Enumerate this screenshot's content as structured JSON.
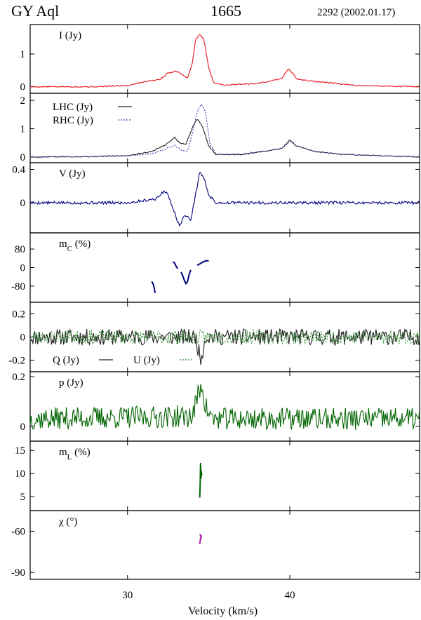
{
  "header": {
    "star": "GY Aql",
    "line": "1665",
    "epoch": "2292 (2002.01.17)"
  },
  "chart_data": {
    "type": "line",
    "title": "GY Aql",
    "xlabel": "Velocity (km/s)",
    "xlim": [
      24,
      48
    ],
    "x_ticks": [
      {
        "value": 30,
        "label": "30"
      },
      {
        "value": 40,
        "label": "40"
      }
    ],
    "panels": [
      {
        "id": "I",
        "label": "I (Jy)",
        "ylim": [
          -0.2,
          1.9
        ],
        "y_ticks": [
          {
            "value": 0,
            "label": "0"
          },
          {
            "value": 1,
            "label": "1"
          }
        ],
        "series": [
          {
            "name": "I",
            "color": "#e8141c",
            "dash": "",
            "points": [
              [
                24,
                0
              ],
              [
                28,
                0
              ],
              [
                30,
                0.04
              ],
              [
                31.3,
                0.18
              ],
              [
                32,
                0.22
              ],
              [
                32.5,
                0.42
              ],
              [
                33,
                0.48
              ],
              [
                33.3,
                0.4
              ],
              [
                33.7,
                0.25
              ],
              [
                34.0,
                0.75
              ],
              [
                34.2,
                1.45
              ],
              [
                34.45,
                1.6
              ],
              [
                34.7,
                1.45
              ],
              [
                35.0,
                0.6
              ],
              [
                35.3,
                0.12
              ],
              [
                36,
                0.05
              ],
              [
                38,
                0.1
              ],
              [
                39.5,
                0.25
              ],
              [
                39.9,
                0.55
              ],
              [
                40.1,
                0.45
              ],
              [
                40.5,
                0.22
              ],
              [
                42,
                0.14
              ],
              [
                44,
                0.04
              ],
              [
                48,
                0
              ]
            ]
          }
        ]
      },
      {
        "id": "LR",
        "label": "",
        "ylim": [
          -0.2,
          2.25
        ],
        "y_ticks": [
          {
            "value": 0,
            "label": "0"
          },
          {
            "value": 1,
            "label": "1"
          },
          {
            "value": 2,
            "label": "2"
          }
        ],
        "legend": [
          {
            "text": "LHC (Jy)",
            "series": 0
          },
          {
            "text": "RHC (Jy)",
            "series": 1
          }
        ],
        "series": [
          {
            "name": "LHC (Jy)",
            "color": "#222222",
            "dash": "",
            "points": [
              [
                24,
                0
              ],
              [
                28,
                0.02
              ],
              [
                30,
                0.05
              ],
              [
                31.5,
                0.2
              ],
              [
                32.4,
                0.45
              ],
              [
                32.9,
                0.7
              ],
              [
                33.2,
                0.5
              ],
              [
                33.6,
                0.45
              ],
              [
                34.0,
                1.05
              ],
              [
                34.3,
                1.35
              ],
              [
                34.6,
                1.1
              ],
              [
                35.0,
                0.4
              ],
              [
                35.4,
                0.1
              ],
              [
                37,
                0.08
              ],
              [
                39.5,
                0.3
              ],
              [
                40.0,
                0.6
              ],
              [
                40.4,
                0.4
              ],
              [
                41.5,
                0.2
              ],
              [
                43,
                0.1
              ],
              [
                48,
                0
              ]
            ]
          },
          {
            "name": "RHC (Jy)",
            "color": "#2f3eb0",
            "dash": "2,2",
            "points": [
              [
                24,
                0
              ],
              [
                28,
                0.02
              ],
              [
                30,
                0.05
              ],
              [
                31.5,
                0.12
              ],
              [
                32.4,
                0.3
              ],
              [
                32.9,
                0.42
              ],
              [
                33.3,
                0.25
              ],
              [
                33.7,
                0.2
              ],
              [
                34.0,
                0.85
              ],
              [
                34.3,
                1.6
              ],
              [
                34.55,
                1.88
              ],
              [
                34.8,
                1.6
              ],
              [
                35.1,
                0.4
              ],
              [
                35.5,
                0.1
              ],
              [
                37,
                0.1
              ],
              [
                39.5,
                0.3
              ],
              [
                40.0,
                0.55
              ],
              [
                40.4,
                0.4
              ],
              [
                41.5,
                0.2
              ],
              [
                43,
                0.1
              ],
              [
                48,
                0
              ]
            ]
          }
        ]
      },
      {
        "id": "V",
        "label": "V (Jy)",
        "ylim": [
          -0.36,
          0.48
        ],
        "y_ticks": [
          {
            "value": 0,
            "label": "0"
          },
          {
            "value": 0.4,
            "label": "0.4"
          }
        ],
        "series": [
          {
            "name": "V",
            "color": "#000080",
            "dash": "",
            "points": [
              [
                24,
                0
              ],
              [
                30,
                0
              ],
              [
                31.8,
                0.05
              ],
              [
                32.3,
                0.15
              ],
              [
                32.6,
                0.05
              ],
              [
                32.9,
                -0.12
              ],
              [
                33.2,
                -0.28
              ],
              [
                33.5,
                -0.15
              ],
              [
                33.9,
                -0.2
              ],
              [
                34.2,
                0.1
              ],
              [
                34.45,
                0.37
              ],
              [
                34.7,
                0.3
              ],
              [
                35.0,
                0.1
              ],
              [
                35.4,
                0
              ],
              [
                48,
                0
              ]
            ]
          }
        ]
      },
      {
        "id": "mC",
        "label": "mC (%)",
        "ylim": [
          -150,
          150
        ],
        "y_ticks": [
          {
            "value": 80,
            "label": "80"
          },
          {
            "value": 0,
            "label": "0"
          },
          {
            "value": -80,
            "label": "-80"
          }
        ],
        "segments": [
          {
            "color": "#000080",
            "points": [
              [
                31.5,
                -60
              ],
              [
                31.6,
                -75
              ],
              [
                31.65,
                -90
              ],
              [
                31.7,
                -110
              ]
            ]
          },
          {
            "color": "#000080",
            "points": [
              [
                32.8,
                25
              ],
              [
                32.9,
                20
              ],
              [
                33.0,
                5
              ],
              [
                33.1,
                -5
              ]
            ]
          },
          {
            "color": "#000080",
            "points": [
              [
                33.3,
                -20
              ],
              [
                33.4,
                -35
              ],
              [
                33.5,
                -55
              ],
              [
                33.6,
                -70
              ],
              [
                33.7,
                -60
              ],
              [
                33.8,
                -30
              ],
              [
                33.9,
                -10
              ]
            ]
          },
          {
            "color": "#000080",
            "points": [
              [
                34.3,
                10
              ],
              [
                34.5,
                18
              ],
              [
                34.7,
                26
              ],
              [
                34.9,
                30
              ],
              [
                35.0,
                28
              ]
            ]
          }
        ]
      },
      {
        "id": "QU",
        "label": "",
        "ylim": [
          -0.3,
          0.3
        ],
        "y_ticks": [
          {
            "value": 0.2,
            "label": "0.2"
          },
          {
            "value": 0,
            "label": "0"
          },
          {
            "value": -0.2,
            "label": "-0.2"
          }
        ],
        "legend": [
          {
            "text": "Q (Jy)",
            "series": 0
          },
          {
            "text": "U (Jy)",
            "series": 1
          }
        ],
        "series": [
          {
            "name": "Q (Jy)",
            "color": "#222222",
            "dash": "",
            "noise": {
              "amp": 0.07,
              "seed": 11
            },
            "points": [
              [
                24,
                0
              ],
              [
                34.2,
                0
              ],
              [
                34.5,
                -0.2
              ],
              [
                34.8,
                0
              ],
              [
                48,
                0
              ]
            ]
          },
          {
            "name": "U (Jy)",
            "color": "#2a8a2a",
            "dash": "2,2",
            "noise": {
              "amp": 0.06,
              "seed": 23
            },
            "points": [
              [
                24,
                0
              ],
              [
                48,
                0
              ]
            ]
          }
        ]
      },
      {
        "id": "p",
        "label": "p (Jy)",
        "ylim": [
          -0.06,
          0.22
        ],
        "y_ticks": [
          {
            "value": 0.2,
            "label": "0.2"
          },
          {
            "value": 0,
            "label": "0"
          }
        ],
        "series": [
          {
            "name": "p",
            "color": "#006400",
            "dash": "",
            "noise": {
              "amp": 0.045,
              "seed": 37
            },
            "points": [
              [
                24,
                0.03
              ],
              [
                34.0,
                0.04
              ],
              [
                34.4,
                0.14
              ],
              [
                34.6,
                0.17
              ],
              [
                34.8,
                0.08
              ],
              [
                35.2,
                0.03
              ],
              [
                48,
                0.03
              ]
            ]
          }
        ]
      },
      {
        "id": "mL",
        "label": "mL (%)",
        "ylim": [
          2,
          17
        ],
        "y_ticks": [
          {
            "value": 15,
            "label": "15"
          },
          {
            "value": 10,
            "label": "10"
          },
          {
            "value": 5,
            "label": "5"
          }
        ],
        "segments": [
          {
            "color": "#006400",
            "points": [
              [
                34.45,
                4.8
              ],
              [
                34.48,
                8
              ],
              [
                34.5,
                12.2
              ],
              [
                34.53,
                9
              ],
              [
                34.55,
                10.5
              ],
              [
                34.57,
                9.5
              ]
            ]
          }
        ]
      },
      {
        "id": "chi",
        "label": "χ (°)",
        "ylim": [
          -95,
          -45
        ],
        "y_ticks": [
          {
            "value": -60,
            "label": "-60"
          },
          {
            "value": -90,
            "label": "-90"
          }
        ],
        "segments": [
          {
            "color": "#b02aa8",
            "points": [
              [
                34.45,
                -62
              ],
              [
                34.5,
                -63
              ],
              [
                34.55,
                -64
              ],
              [
                34.5,
                -66
              ],
              [
                34.45,
                -69
              ],
              [
                34.5,
                -65
              ],
              [
                34.55,
                -63
              ]
            ]
          }
        ]
      }
    ]
  }
}
